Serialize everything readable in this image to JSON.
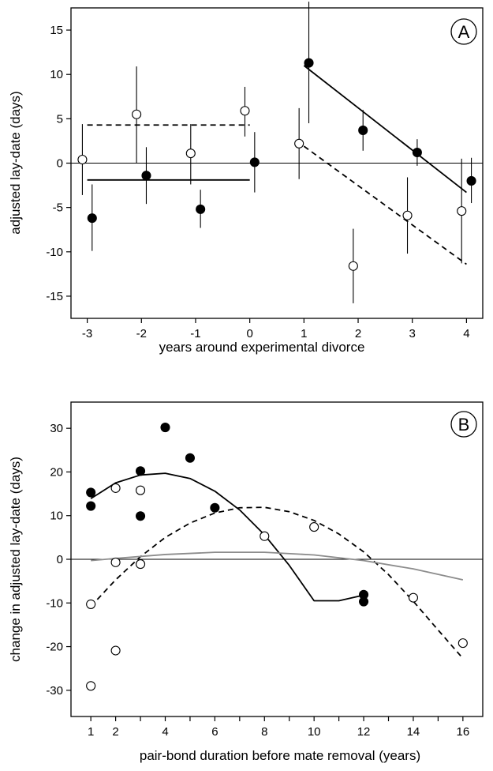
{
  "chart_data": [
    {
      "panel": "A",
      "type": "scatter",
      "xlabel": "years around experimental divorce",
      "ylabel": "adjusted lay-date (days)",
      "xlim": [
        -3.3,
        4.3
      ],
      "ylim": [
        -17.5,
        17.5
      ],
      "xticks": [
        -3,
        -2,
        -1,
        0,
        1,
        2,
        3,
        4
      ],
      "yticks": [
        -15,
        -10,
        -5,
        0,
        5,
        10,
        15
      ],
      "zero_line": true,
      "series": [
        {
          "marker": "open-circle",
          "points": [
            {
              "x": -3,
              "y": 0.4,
              "lo": -3.6,
              "hi": 4.4
            },
            {
              "x": -2,
              "y": 5.5,
              "lo": 0.0,
              "hi": 10.9
            },
            {
              "x": -1,
              "y": 1.1,
              "lo": -2.4,
              "hi": 4.4
            },
            {
              "x": 0,
              "y": 5.9,
              "lo": 3.0,
              "hi": 8.6
            },
            {
              "x": 1,
              "y": 2.2,
              "lo": -1.8,
              "hi": 6.2
            },
            {
              "x": 2,
              "y": -11.6,
              "lo": -15.8,
              "hi": -7.4
            },
            {
              "x": 3,
              "y": -5.9,
              "lo": -10.2,
              "hi": -1.6
            },
            {
              "x": 4,
              "y": -5.4,
              "lo": -11.3,
              "hi": 0.5
            }
          ],
          "fit_lines": [
            {
              "style": "dashed",
              "x": [
                -3,
                0
              ],
              "y": [
                4.3,
                4.3
              ]
            },
            {
              "style": "dashed",
              "x": [
                1,
                4
              ],
              "y": [
                1.9,
                -11.4
              ]
            }
          ]
        },
        {
          "marker": "filled-circle",
          "points": [
            {
              "x": -3,
              "y": -6.2,
              "lo": -9.9,
              "hi": -2.4
            },
            {
              "x": -2,
              "y": -1.4,
              "lo": -4.6,
              "hi": 1.8
            },
            {
              "x": -1,
              "y": -5.2,
              "lo": -7.3,
              "hi": -3.0
            },
            {
              "x": 0,
              "y": 0.1,
              "lo": -3.3,
              "hi": 3.5
            },
            {
              "x": 1,
              "y": 11.3,
              "lo": 4.5,
              "hi": 18.2
            },
            {
              "x": 2,
              "y": 3.7,
              "lo": 1.4,
              "hi": 6.0
            },
            {
              "x": 3,
              "y": 1.2,
              "lo": -0.3,
              "hi": 2.7
            },
            {
              "x": 4,
              "y": -2.0,
              "lo": -4.5,
              "hi": 0.6
            }
          ],
          "fit_lines": [
            {
              "style": "solid",
              "x": [
                -3,
                0
              ],
              "y": [
                -1.9,
                -1.9
              ]
            },
            {
              "style": "solid",
              "x": [
                1,
                4
              ],
              "y": [
                11.0,
                -3.3
              ]
            }
          ]
        }
      ]
    },
    {
      "panel": "B",
      "type": "scatter",
      "xlabel": "pair-bond duration before mate removal (years)",
      "ylabel": "change in adjusted lay-date (days)",
      "xlim": [
        0.2,
        16.8
      ],
      "ylim": [
        -36,
        36
      ],
      "xticks": [
        1,
        2,
        3,
        4,
        5,
        6,
        7,
        8,
        9,
        10,
        11,
        12,
        13,
        14,
        15,
        16
      ],
      "xtick_labels": [
        "1",
        "2",
        "",
        "4",
        "",
        "6",
        "",
        "8",
        "",
        "10",
        "",
        "12",
        "",
        "14",
        "",
        "16"
      ],
      "yticks": [
        -30,
        -20,
        -10,
        0,
        10,
        20,
        30
      ],
      "zero_line": true,
      "series": [
        {
          "marker": "filled-circle",
          "points": [
            [
              1,
              15.3
            ],
            [
              1,
              12.2
            ],
            [
              3,
              20.2
            ],
            [
              3,
              9.9
            ],
            [
              4,
              30.2
            ],
            [
              5,
              23.2
            ],
            [
              6,
              11.8
            ],
            [
              12,
              -8.1
            ],
            [
              12,
              -9.7
            ]
          ],
          "fit_curve": {
            "style": "solid",
            "color": "#000000",
            "x": [
              1,
              2,
              3,
              4,
              5,
              6,
              7,
              8,
              9,
              10,
              11,
              12
            ],
            "y": [
              13.9,
              17.5,
              19.3,
              19.7,
              18.5,
              15.6,
              11.3,
              5.6,
              -1.4,
              -9.5,
              -9.5,
              -8.2
            ]
          }
        },
        {
          "marker": "open-circle",
          "points": [
            [
              1,
              -10.3
            ],
            [
              1,
              -29.0
            ],
            [
              2,
              16.3
            ],
            [
              2,
              -0.7
            ],
            [
              2,
              -20.9
            ],
            [
              3,
              15.8
            ],
            [
              3,
              -1.1
            ],
            [
              8,
              5.3
            ],
            [
              10,
              7.4
            ],
            [
              14,
              -8.8
            ],
            [
              16,
              -19.2
            ]
          ],
          "fit_curve": {
            "style": "dashed",
            "color": "#000000",
            "x": [
              1,
              2,
              3,
              4,
              5,
              6,
              7,
              8,
              9,
              10,
              11,
              12,
              13,
              14,
              15,
              16
            ],
            "y": [
              -10.8,
              -4.7,
              0.6,
              5.0,
              8.3,
              10.6,
              11.8,
              11.9,
              10.9,
              8.9,
              5.8,
              1.7,
              -3.5,
              -9.6,
              -16.2,
              -22.7
            ]
          }
        },
        {
          "marker": "none",
          "points": [],
          "fit_curve": {
            "style": "solid",
            "color": "#8c8c8c",
            "x": [
              1,
              2,
              4,
              6,
              8,
              10,
              12,
              14,
              16
            ],
            "y": [
              -0.3,
              0.2,
              1.1,
              1.6,
              1.6,
              1.0,
              -0.3,
              -2.2,
              -4.7
            ]
          }
        }
      ]
    }
  ]
}
